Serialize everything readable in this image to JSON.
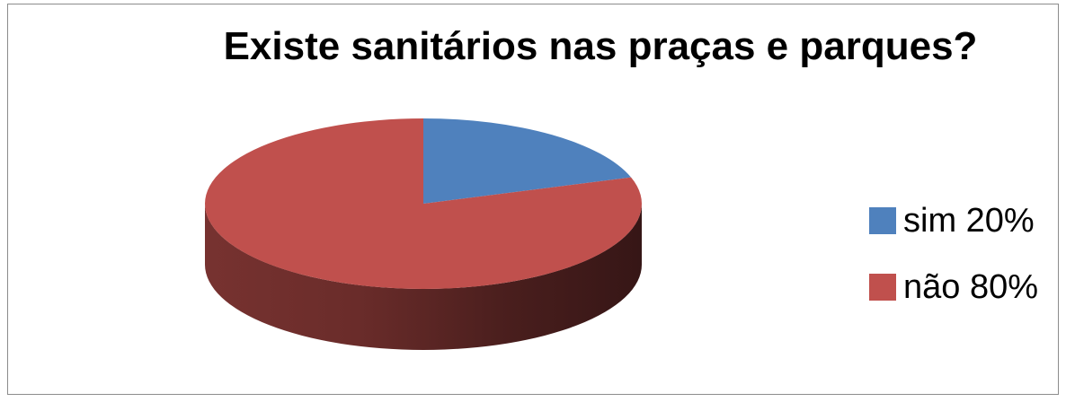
{
  "chart_data": {
    "type": "pie",
    "title": "Existe sanitários nas praças e parques?",
    "slices": [
      {
        "label": "sim 20%",
        "value": 20,
        "color": "#4f81bd"
      },
      {
        "label": "não 80%",
        "value": 80,
        "color": "#c0504d"
      }
    ],
    "style": "3d",
    "legend": "right"
  }
}
